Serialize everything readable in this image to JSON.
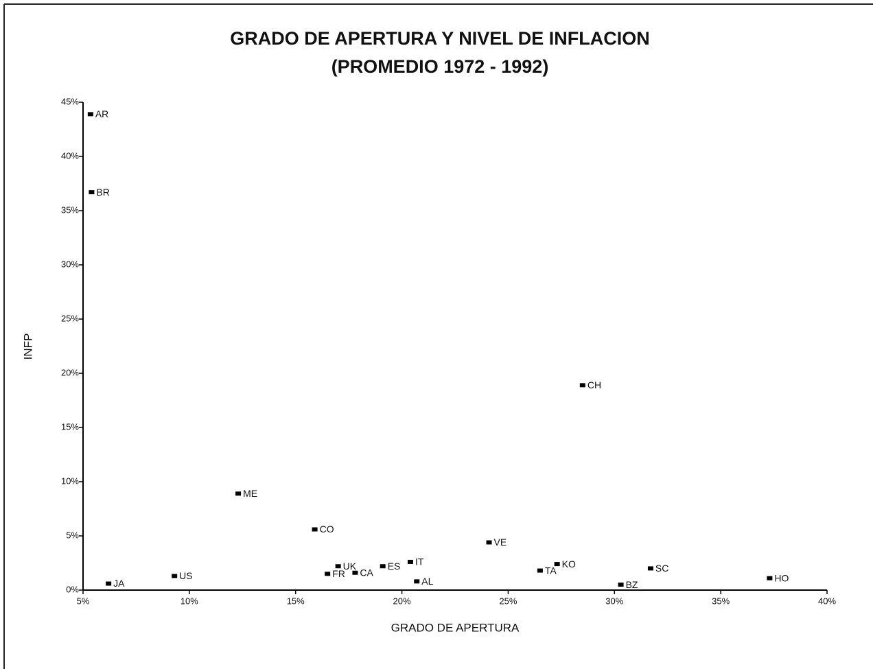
{
  "chart_data": {
    "type": "scatter",
    "title": "GRADO DE APERTURA Y NIVEL DE INFLACION",
    "subtitle": "(PROMEDIO 1972 - 1992)",
    "x_label": "GRADO DE APERTURA",
    "y_label": "INFP",
    "labels": [
      "AR",
      "BR",
      "JA",
      "US",
      "ME",
      "CO",
      "UK",
      "FR",
      "CA",
      "ES",
      "IT",
      "AL",
      "VE",
      "TA",
      "KO",
      "CH",
      "BZ",
      "SC",
      "HO"
    ],
    "x": [
      5.35,
      5.4,
      6.2,
      9.3,
      12.3,
      15.9,
      17.0,
      16.5,
      17.8,
      19.1,
      20.4,
      20.7,
      24.1,
      26.5,
      27.3,
      28.5,
      30.3,
      31.7,
      37.3
    ],
    "values": [
      43.9,
      36.7,
      0.6,
      1.3,
      8.9,
      5.6,
      2.2,
      1.5,
      1.6,
      2.2,
      2.6,
      0.8,
      4.4,
      1.8,
      2.4,
      18.9,
      0.5,
      2.0,
      1.1
    ],
    "color": "#000000",
    "xlim": [
      5,
      40
    ],
    "ylim": [
      0,
      45
    ],
    "xticks": [
      {
        "value": 5,
        "label": "5%"
      },
      {
        "value": 10,
        "label": "10%"
      },
      {
        "value": 15,
        "label": "15%"
      },
      {
        "value": 20,
        "label": "20%"
      },
      {
        "value": 25,
        "label": "25%"
      },
      {
        "value": 30,
        "label": "30%"
      },
      {
        "value": 35,
        "label": "35%"
      },
      {
        "value": 40,
        "label": "40%"
      }
    ],
    "yticks": [
      {
        "value": 0,
        "label": "0%"
      },
      {
        "value": 5,
        "label": "5%"
      },
      {
        "value": 10,
        "label": "10%"
      },
      {
        "value": 15,
        "label": "15%"
      },
      {
        "value": 20,
        "label": "20%"
      },
      {
        "value": 25,
        "label": "25%"
      },
      {
        "value": 30,
        "label": "30%"
      },
      {
        "value": 35,
        "label": "35%"
      },
      {
        "value": 40,
        "label": "40%"
      },
      {
        "value": 45,
        "label": "45%"
      }
    ],
    "grid": false
  }
}
